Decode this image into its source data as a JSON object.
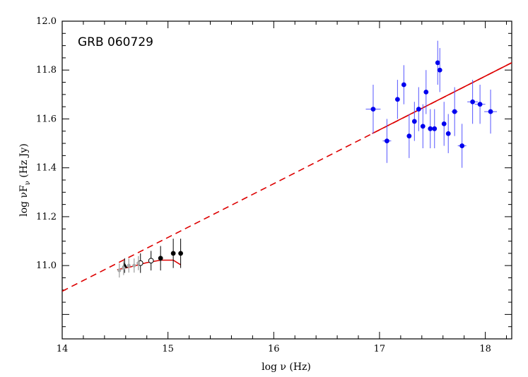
{
  "chart_data": {
    "type": "scatter",
    "title": "GRB 060729",
    "xlabel": "log ν (Hz)",
    "ylabel_parts": [
      "log νF",
      "ν",
      " (Hz Jy)"
    ],
    "xlim": [
      14.0,
      18.25
    ],
    "ylim": [
      10.7,
      12.0
    ],
    "x_ticks": [
      14,
      15,
      16,
      17,
      18
    ],
    "x_tick_labels": [
      "14",
      "15",
      "16",
      "17",
      "18"
    ],
    "y_ticks": [
      11.0,
      11.2,
      11.4,
      11.6,
      11.8,
      12.0
    ],
    "y_tick_labels": [
      "11.0",
      "11.2",
      "11.4",
      "11.6",
      "11.8",
      "12.0"
    ],
    "grid": false,
    "colors": {
      "xray": "#0000ee",
      "xray_err": "#5555ff",
      "optical": "#000000",
      "model": "#dd0000",
      "uv_grey": "#aaaaaa"
    },
    "series": [
      {
        "kind": "xray-points",
        "marker": "filled-circle",
        "points": [
          {
            "x": 16.94,
            "y": 11.64,
            "yerr": 0.1,
            "xerr": 0.07
          },
          {
            "x": 17.07,
            "y": 11.51,
            "yerr": 0.09,
            "xerr": 0.04
          },
          {
            "x": 17.17,
            "y": 11.68,
            "yerr": 0.08,
            "xerr": 0.02
          },
          {
            "x": 17.23,
            "y": 11.74,
            "yerr": 0.08,
            "xerr": 0.02
          },
          {
            "x": 17.28,
            "y": 11.53,
            "yerr": 0.09,
            "xerr": 0.02
          },
          {
            "x": 17.33,
            "y": 11.59,
            "yerr": 0.08,
            "xerr": 0.02
          },
          {
            "x": 17.37,
            "y": 11.64,
            "yerr": 0.09,
            "xerr": 0.02
          },
          {
            "x": 17.41,
            "y": 11.57,
            "yerr": 0.09,
            "xerr": 0.02
          },
          {
            "x": 17.44,
            "y": 11.71,
            "yerr": 0.09,
            "xerr": 0.02
          },
          {
            "x": 17.48,
            "y": 11.56,
            "yerr": 0.08,
            "xerr": 0.02
          },
          {
            "x": 17.52,
            "y": 11.56,
            "yerr": 0.08,
            "xerr": 0.02
          },
          {
            "x": 17.55,
            "y": 11.83,
            "yerr": 0.09,
            "xerr": 0.02
          },
          {
            "x": 17.57,
            "y": 11.8,
            "yerr": 0.09,
            "xerr": 0.02
          },
          {
            "x": 17.61,
            "y": 11.58,
            "yerr": 0.09,
            "xerr": 0.02
          },
          {
            "x": 17.65,
            "y": 11.54,
            "yerr": 0.08,
            "xerr": 0.02
          },
          {
            "x": 17.71,
            "y": 11.63,
            "yerr": 0.1,
            "xerr": 0.03
          },
          {
            "x": 17.78,
            "y": 11.49,
            "yerr": 0.09,
            "xerr": 0.04
          },
          {
            "x": 17.88,
            "y": 11.67,
            "yerr": 0.09,
            "xerr": 0.05
          },
          {
            "x": 17.95,
            "y": 11.66,
            "yerr": 0.08,
            "xerr": 0.05
          },
          {
            "x": 18.05,
            "y": 11.63,
            "yerr": 0.09,
            "xerr": 0.06
          }
        ]
      },
      {
        "kind": "optical-filled",
        "marker": "filled-circle",
        "points": [
          {
            "x": 14.93,
            "y": 11.03,
            "yerr": 0.05
          },
          {
            "x": 15.05,
            "y": 11.05,
            "yerr": 0.06
          },
          {
            "x": 15.12,
            "y": 11.05,
            "yerr": 0.06
          }
        ]
      },
      {
        "kind": "optical-open",
        "marker": "open-circle",
        "points": [
          {
            "x": 14.74,
            "y": 11.01,
            "yerr": 0.04
          },
          {
            "x": 14.84,
            "y": 11.02,
            "yerr": 0.04
          }
        ]
      },
      {
        "kind": "optical-triangle",
        "marker": "filled-triangle",
        "points": [
          {
            "x": 14.59,
            "y": 11.0,
            "yerr": 0.03
          }
        ]
      },
      {
        "kind": "uv-grey-band",
        "points": [
          {
            "x": 14.54,
            "y": 10.98
          },
          {
            "x": 14.58,
            "y": 10.99
          },
          {
            "x": 14.63,
            "y": 11.0
          },
          {
            "x": 14.68,
            "y": 11.0
          },
          {
            "x": 14.72,
            "y": 11.01
          }
        ]
      },
      {
        "kind": "model-dashed",
        "line": "dashed",
        "points": [
          {
            "x": 14.0,
            "y": 10.895
          },
          {
            "x": 18.25,
            "y": 11.83
          }
        ]
      },
      {
        "kind": "model-solid-xray",
        "line": "solid",
        "points": [
          {
            "x": 16.93,
            "y": 11.54
          },
          {
            "x": 18.25,
            "y": 11.83
          }
        ]
      },
      {
        "kind": "model-solid-optical",
        "line": "solid",
        "points": [
          {
            "x": 14.52,
            "y": 10.983
          },
          {
            "x": 14.65,
            "y": 10.995
          },
          {
            "x": 14.8,
            "y": 11.012
          },
          {
            "x": 14.93,
            "y": 11.022
          },
          {
            "x": 15.05,
            "y": 11.022
          },
          {
            "x": 15.12,
            "y": 11.003
          }
        ]
      }
    ]
  }
}
